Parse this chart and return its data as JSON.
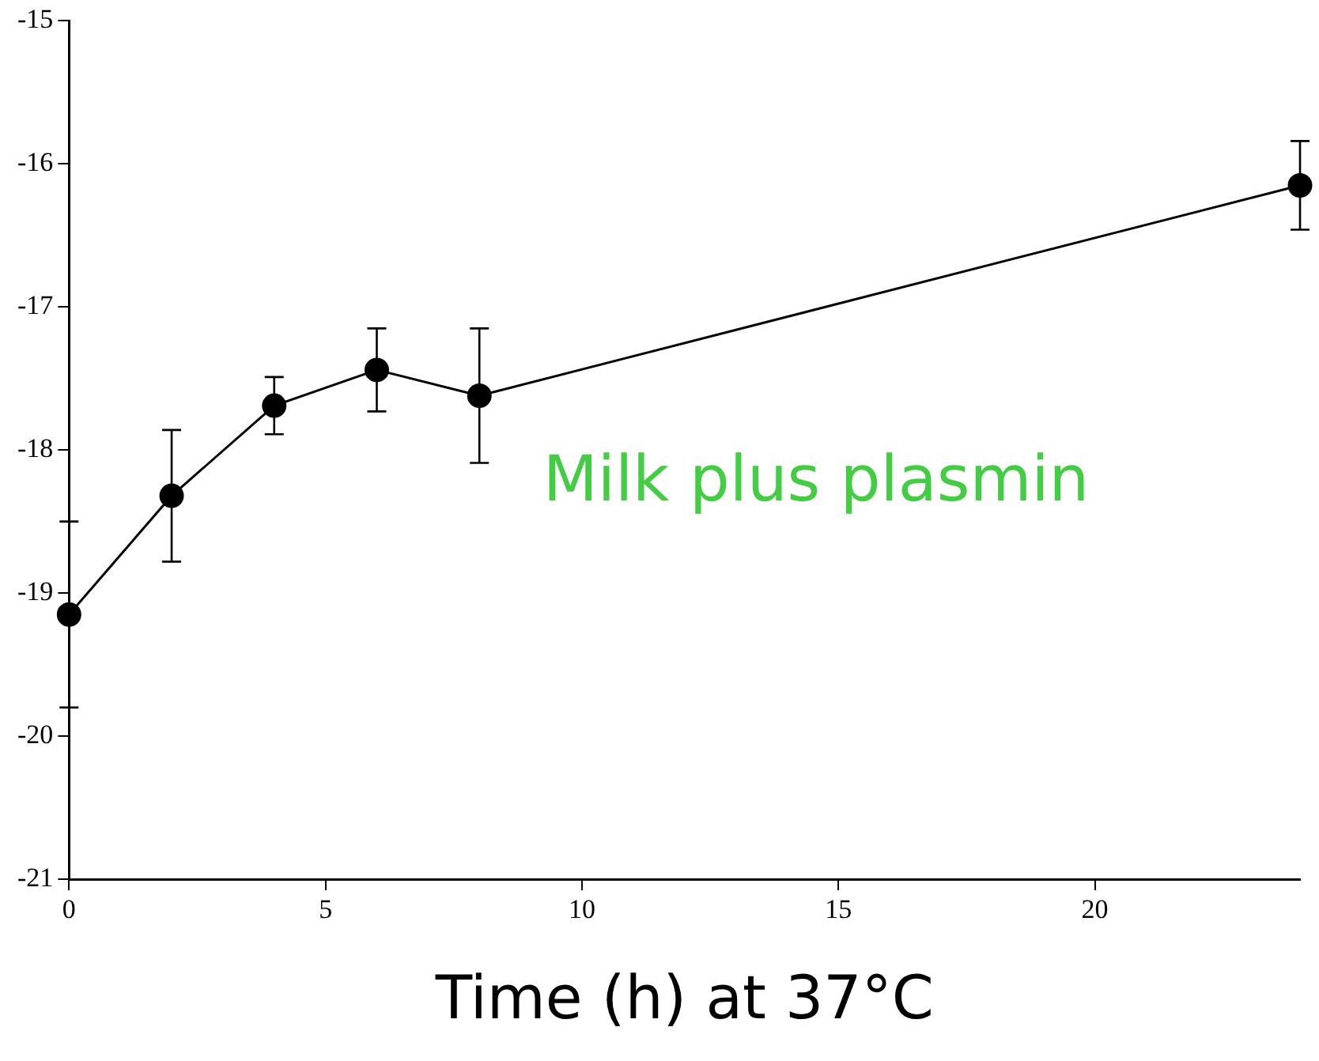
{
  "chart_data": {
    "type": "line",
    "xlabel": "Time (h) at 37°C",
    "x": [
      0,
      2,
      4,
      6,
      8,
      24
    ],
    "series": [
      {
        "color": "#000000",
        "values": [
          -19.15,
          -18.32,
          -17.69,
          -17.44,
          -17.62,
          -16.15
        ],
        "errors": [
          0.65,
          0.46,
          0.2,
          0.29,
          0.47,
          0.31
        ]
      }
    ],
    "xlim": [
      0,
      24
    ],
    "xticks": [
      0,
      5,
      10,
      15,
      20
    ],
    "ylim": [
      -21,
      -15
    ],
    "yticks": [
      -21,
      -20,
      -19,
      -18,
      -17,
      -16,
      -15
    ],
    "annotations": [
      "Milk plus plasmin"
    ],
    "grid": false,
    "legend": false,
    "marker": "circle",
    "line_style": "solid"
  }
}
